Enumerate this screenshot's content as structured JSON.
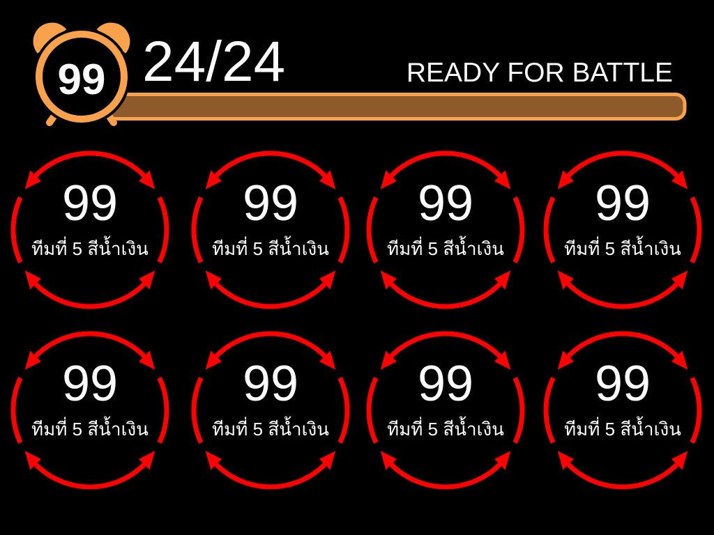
{
  "header": {
    "timer": {
      "icon": "alarm-clock-icon",
      "value": "99"
    },
    "count_label": "24/24",
    "status_label": "READY FOR BATTLE",
    "progress": {
      "fill_fraction": 1.0
    }
  },
  "teams": [
    {
      "value": "99",
      "label": "ทีมที่ 5 สีน้ำเงิน"
    },
    {
      "value": "99",
      "label": "ทีมที่ 5 สีน้ำเงิน"
    },
    {
      "value": "99",
      "label": "ทีมที่ 5 สีน้ำเงิน"
    },
    {
      "value": "99",
      "label": "ทีมที่ 5 สีน้ำเงิน"
    },
    {
      "value": "99",
      "label": "ทีมที่ 5 สีน้ำเงิน"
    },
    {
      "value": "99",
      "label": "ทีมที่ 5 สีน้ำเงิน"
    },
    {
      "value": "99",
      "label": "ทีมที่ 5 สีน้ำเงิน"
    },
    {
      "value": "99",
      "label": "ทีมที่ 5 สีน้ำเงิน"
    }
  ],
  "colors": {
    "background": "#000000",
    "text": "#FFFFFF",
    "accent": "#F9A24B",
    "progress_fill": "#8E5A2A",
    "ring": "#FF0000"
  }
}
